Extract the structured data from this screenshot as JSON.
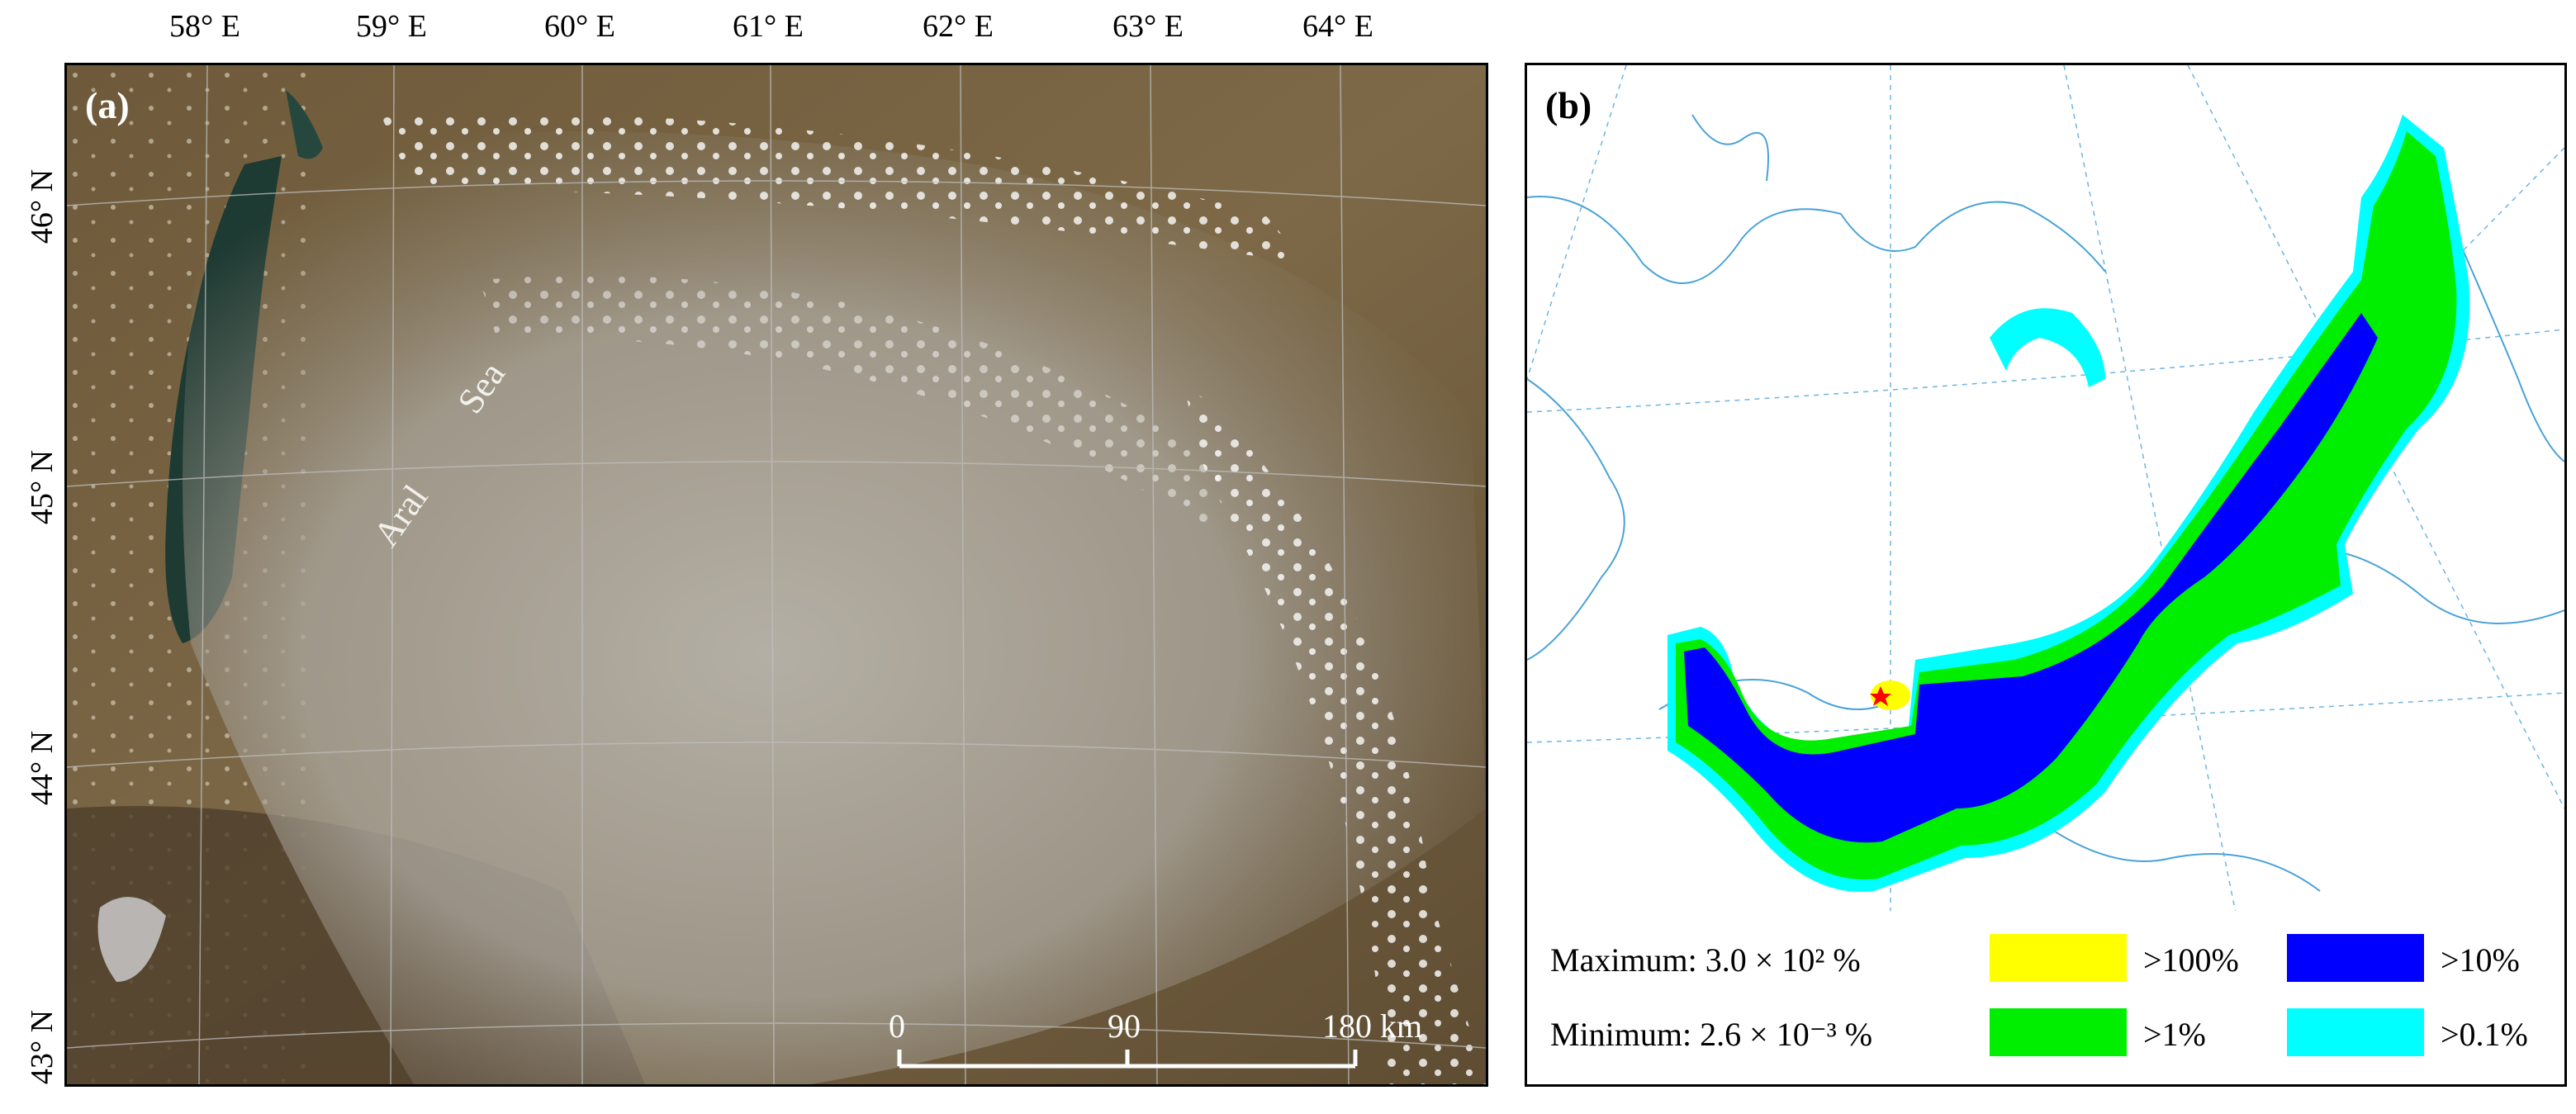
{
  "panel_a": {
    "label": "(a)",
    "lon_ticks": [
      "58° E",
      "59° E",
      "60° E",
      "61° E",
      "62° E",
      "63° E",
      "64° E"
    ],
    "lat_ticks": [
      "46° N",
      "45° N",
      "44° N",
      "43° N"
    ],
    "sea_words": [
      "Aral",
      "Sea"
    ],
    "scale_bar": {
      "labels": [
        "0",
        "90",
        "180 km"
      ]
    }
  },
  "panel_b": {
    "label": "(b)",
    "legend": {
      "maximum": "Maximum: 3.0 × 10² %",
      "minimum": "Minimum: 2.6 × 10⁻³ %",
      "items": [
        {
          "label": ">100%",
          "color": "#ffff00"
        },
        {
          "label": ">10%",
          "color": "#0000ff"
        },
        {
          "label": ">1%",
          "color": "#00ee00"
        },
        {
          "label": ">0.1%",
          "color": "#00ffff"
        }
      ]
    },
    "source_marker": "red-star-icon"
  },
  "colors": {
    "desert": "#7a6440",
    "sea": "#1d3a33",
    "dust": "#c9c2b4",
    "coast": "#4aa3d8"
  }
}
